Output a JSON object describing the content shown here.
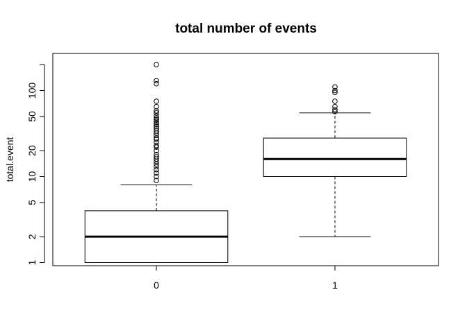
{
  "chart_data": {
    "type": "boxplot",
    "title": "total number of events",
    "xlabel": "",
    "ylabel": "total.event",
    "y_scale": "log",
    "ylim": [
      0.92,
      270
    ],
    "y_ticks": [
      1,
      2,
      5,
      10,
      20,
      50,
      100,
      200
    ],
    "y_tick_labels": [
      "1",
      "2",
      "5",
      "10",
      "20",
      "50",
      "100",
      ""
    ],
    "categories": [
      "0",
      "1"
    ],
    "boxes": [
      {
        "category": "0",
        "whisker_low": 1,
        "q1": 1,
        "median": 2,
        "q3": 4,
        "whisker_high": 8,
        "outliers": [
          9,
          10,
          11,
          12,
          13,
          14,
          15,
          16,
          17,
          18,
          20,
          22,
          23,
          25,
          27,
          28,
          30,
          32,
          34,
          36,
          38,
          40,
          42,
          44,
          46,
          48,
          51,
          55,
          58,
          65,
          75,
          120,
          130,
          200
        ]
      },
      {
        "category": "1",
        "whisker_low": 2,
        "q1": 10,
        "median": 16,
        "q3": 28,
        "whisker_high": 55,
        "outliers": [
          57,
          60,
          65,
          75,
          95,
          100,
          110
        ]
      }
    ]
  }
}
